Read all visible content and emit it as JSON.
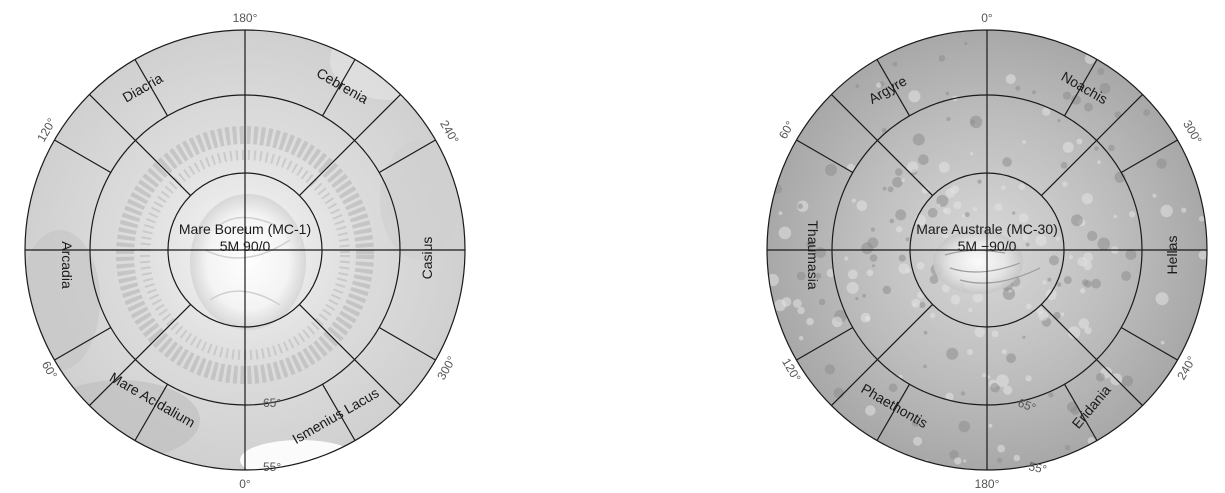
{
  "maps": [
    {
      "id": "north",
      "title": "Mare Boreum (MC-1)",
      "subtitle": "5M 90/0",
      "lat_labels": [
        "65°",
        "55°"
      ],
      "lon_labels": [
        "180°",
        "120°",
        "240°",
        "60°",
        "300°",
        "0°"
      ],
      "regions": [
        "Diacria",
        "Cebrenia",
        "Arcadia",
        "Casius",
        "Mare Acidalium",
        "Ismenius Lacus"
      ]
    },
    {
      "id": "south",
      "title": "Mare Australe (MC-30)",
      "subtitle": "5M −90/0",
      "lat_labels": [
        "65°",
        "55°"
      ],
      "lon_labels": [
        "0°",
        "60°",
        "300°",
        "120°",
        "240°",
        "180°"
      ],
      "regions": [
        "Argyre",
        "Noachis",
        "Thaumasia",
        "Hellas",
        "Phaethontis",
        "Eridania"
      ]
    }
  ],
  "colors": {
    "line": "#1a1a1a",
    "ice_cap": "#ffffff",
    "terrain_light": "#e6e6e6",
    "terrain_mid": "#c8c8c8",
    "terrain_dark": "#9a9a9a",
    "label": "#1a1a1a",
    "lon_label": "#555555"
  }
}
